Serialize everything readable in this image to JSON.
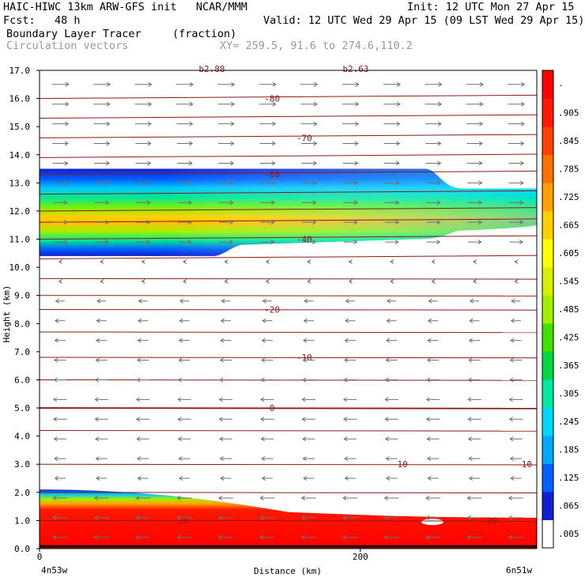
{
  "header": {
    "left1": "HAIC-HIWC 13km ARW-GFS init   NCAR/MMM",
    "left2": "Fcst:   48 h",
    "right1": "Init: 12 UTC Mon 27 Apr 15",
    "right2": "Valid: 12 UTC Wed 29 Apr 15 (09 LST Wed 29 Apr 15)",
    "field_name": "Boundary Layer Tracer",
    "field_units": "(fraction)",
    "overlay_name": "Circulation vectors",
    "xy_info": "XY= 259.5, 91.6 to 274.6,110.2"
  },
  "chart_data": {
    "type": "heatmap",
    "title": "Boundary Layer Tracer (fraction)",
    "xlabel": "Distance (km)",
    "ylabel": "Height (km)",
    "xlim": [
      0,
      310
    ],
    "ylim": [
      0.0,
      17.0
    ],
    "x_ticks": [
      {
        "v": 0,
        "label": "0"
      },
      {
        "v": 200,
        "label": "200"
      }
    ],
    "x_end_labels": {
      "left": "4n53w",
      "right": "6n51w"
    },
    "y_ticks": [
      "0.0",
      "1.0",
      "2.0",
      "3.0",
      "4.0",
      "5.0",
      "6.0",
      "7.0",
      "8.0",
      "9.0",
      "10.0",
      "11.0",
      "12.0",
      "13.0",
      "14.0",
      "15.0",
      "16.0",
      "17.0"
    ],
    "colorbar": {
      "labels": [
        ".005",
        ".065",
        ".125",
        ".185",
        ".245",
        ".305",
        ".365",
        ".425",
        ".485",
        ".545",
        ".605",
        ".665",
        ".725",
        ".785",
        ".845",
        ".905",
        "-"
      ],
      "colors": [
        "#ffffff",
        "#1020d0",
        "#0060ff",
        "#00a8ff",
        "#00d8ff",
        "#00e8a0",
        "#00d840",
        "#40e000",
        "#a0f000",
        "#d8f000",
        "#ffff00",
        "#ffd000",
        "#ffa000",
        "#ff7000",
        "#ff4000",
        "#ff1800",
        "#ff0000"
      ]
    },
    "upper_layer": {
      "base_km": [
        10.4,
        10.8,
        11.0
      ],
      "top_km": [
        13.5,
        13.5,
        12.8
      ],
      "core_value": 0.7
    },
    "lower_layer": {
      "top_km": [
        2.1,
        1.6,
        1.1
      ],
      "value": 0.93
    },
    "isotherms": [
      {
        "label": "-80",
        "km": 16.0
      },
      {
        "label": "-70",
        "km": 14.6
      },
      {
        "label": "-60",
        "km": 13.3
      },
      {
        "label": "-40",
        "km": 11.0
      },
      {
        "label": "-20",
        "km": 8.5
      },
      {
        "label": "-10",
        "km": 6.8
      },
      {
        "label": "0",
        "km": 5.0
      },
      {
        "label": "10",
        "km": 3.0
      },
      {
        "label": "20",
        "km": 1.0
      }
    ],
    "top_edge_labels": [
      "b2.88",
      "b2.63"
    ],
    "vector_wind": {
      "upper": "westerly",
      "lower": "easterly"
    }
  }
}
